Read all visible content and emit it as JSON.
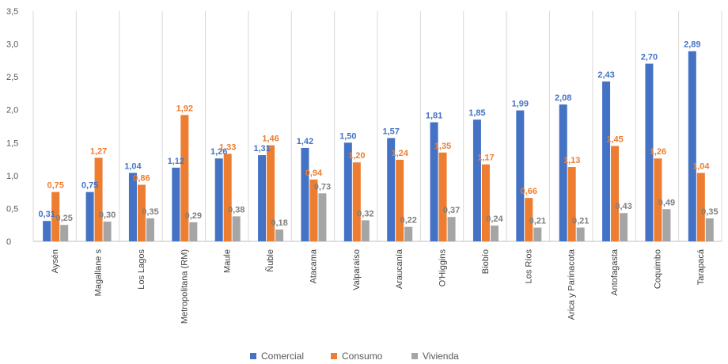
{
  "chart_data": {
    "type": "bar",
    "title": "",
    "xlabel": "",
    "ylabel": "",
    "ylim": [
      0,
      3.5
    ],
    "yticks": [
      "0",
      "0,5",
      "1,0",
      "1,5",
      "2,0",
      "2,5",
      "3,0",
      "3,5"
    ],
    "grid": "vertical separators between categories",
    "legend_position": "bottom",
    "categories": [
      "Aysén",
      "Magallane s",
      "Los Lagos",
      "Metropolitana (RM)",
      "Maule",
      "Ñuble",
      "Atacama",
      "Valparaíso",
      "Araucanía",
      "O'Higgins",
      "Biobío",
      "Los Ríos",
      "Arica y Parinacota",
      "Antofagasta",
      "Coquimbo",
      "Tarapacá"
    ],
    "series": [
      {
        "name": "Comercial",
        "color": "#4472C4",
        "values": [
          0.31,
          0.75,
          1.04,
          1.12,
          1.26,
          1.31,
          1.42,
          1.5,
          1.57,
          1.81,
          1.85,
          1.99,
          2.08,
          2.43,
          2.7,
          2.89
        ],
        "labels": [
          "0,31",
          "0,75",
          "1,04",
          "1,12",
          "1,26",
          "1,31",
          "1,42",
          "1,50",
          "1,57",
          "1,81",
          "1,85",
          "1,99",
          "2,08",
          "2,43",
          "2,70",
          "2,89"
        ]
      },
      {
        "name": "Consumo",
        "color": "#ED7D31",
        "values": [
          0.75,
          1.27,
          0.86,
          1.92,
          1.33,
          1.46,
          0.94,
          1.2,
          1.24,
          1.35,
          1.17,
          0.66,
          1.13,
          1.45,
          1.26,
          1.04
        ],
        "labels": [
          "0,75",
          "1,27",
          "0,86",
          "1,92",
          "1,33",
          "1,46",
          "0,94",
          "1,20",
          "1,24",
          "1,35",
          "1,17",
          "0,66",
          "1,13",
          "1,45",
          "1,26",
          "1,04"
        ]
      },
      {
        "name": "Vivienda",
        "color": "#A5A5A5",
        "values": [
          0.25,
          0.3,
          0.35,
          0.29,
          0.38,
          0.18,
          0.73,
          0.32,
          0.22,
          0.37,
          0.24,
          0.21,
          0.21,
          0.43,
          0.49,
          0.35
        ],
        "labels": [
          "0,25",
          "0,30",
          "0,35",
          "0,29",
          "0,38",
          "0,18",
          "0,73",
          "0,32",
          "0,22",
          "0,37",
          "0,24",
          "0,21",
          "0,21",
          "0,43",
          "0,49",
          "0,35"
        ]
      }
    ]
  }
}
